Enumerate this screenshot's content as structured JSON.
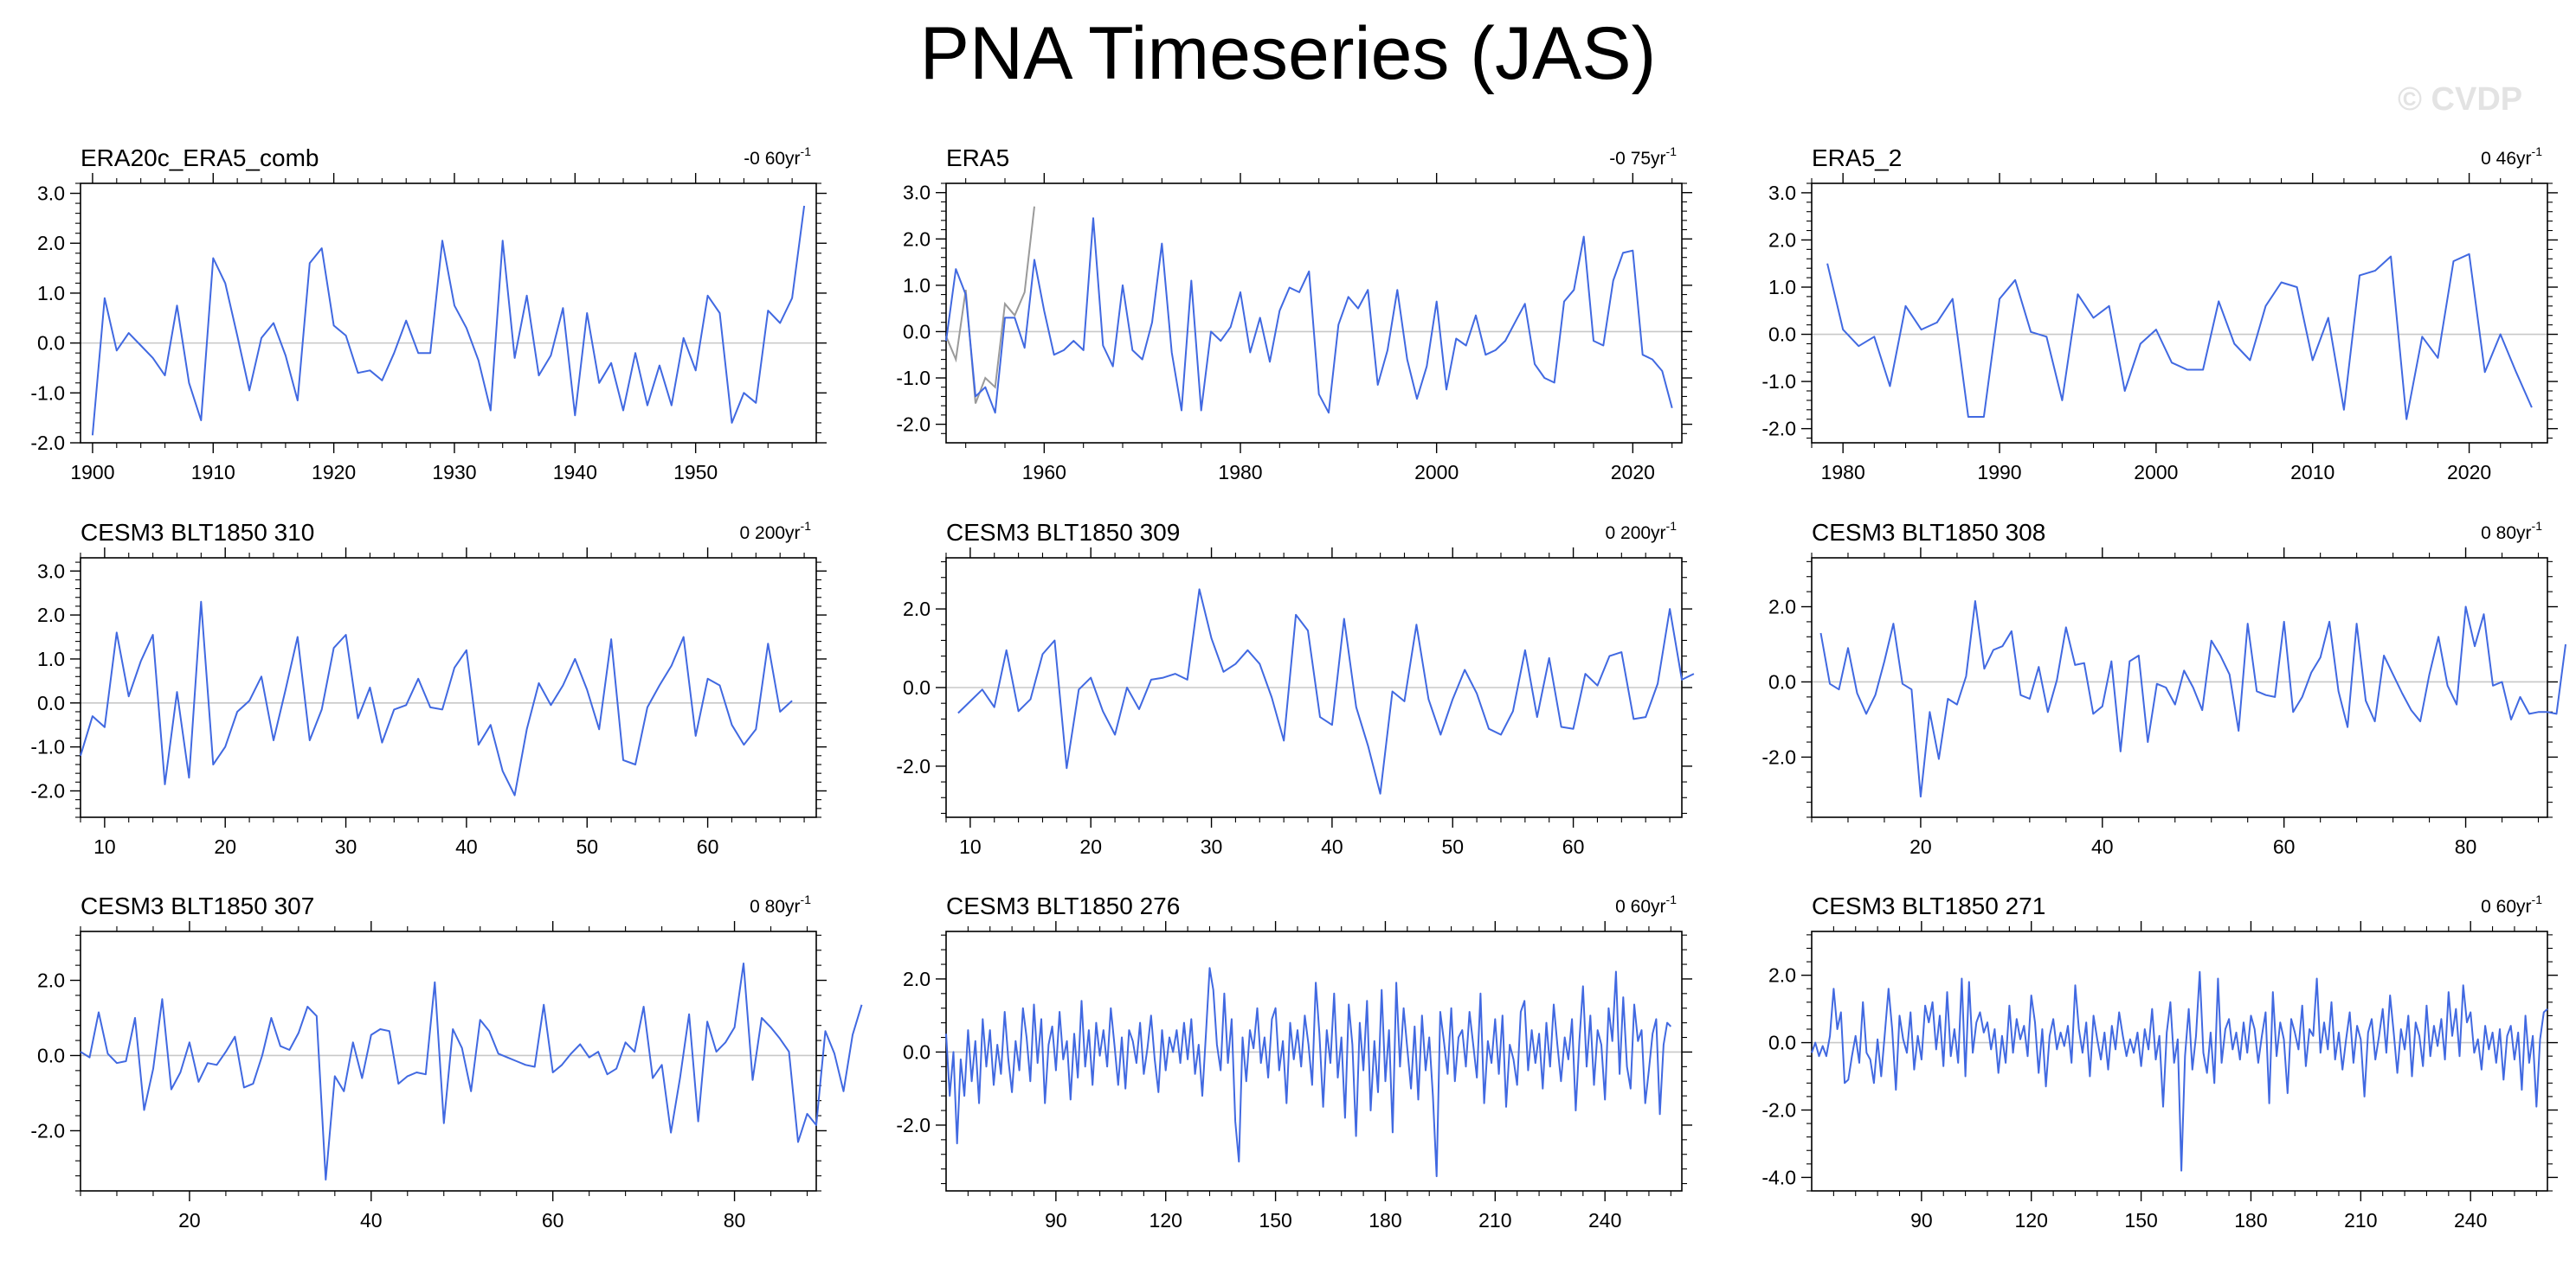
{
  "title": "PNA Timeseries (JAS)",
  "watermark": "© CVDP",
  "colors": {
    "series": "#4169e1",
    "overlay": "#9a9a9a",
    "zero": "#c8c8c8",
    "axis": "#000000"
  },
  "chart_data": [
    {
      "type": "line",
      "title": "ERA20c_ERA5_comb",
      "trend": "-0 60yr",
      "trend_exp": "-1",
      "xlim": [
        1899,
        1960
      ],
      "ylim": [
        -2.0,
        3.2
      ],
      "xticks": [
        1900,
        1910,
        1920,
        1930,
        1940,
        1950
      ],
      "xtick_labels": [
        "1900",
        "1910",
        "1920",
        "1930",
        "1940",
        "1950"
      ],
      "yticks": [
        -2,
        -1,
        0,
        1,
        2,
        3
      ],
      "ytick_labels": [
        "-2.0",
        "-1.0",
        "0.0",
        "1.0",
        "2.0",
        "3.0"
      ],
      "x_start": 1900,
      "x_step": 1,
      "values": [
        -1.85,
        0.9,
        -0.15,
        0.2,
        -0.05,
        -0.3,
        -0.65,
        0.75,
        -0.8,
        -1.55,
        1.7,
        1.2,
        0.15,
        -0.95,
        0.1,
        0.4,
        -0.25,
        -1.15,
        1.6,
        1.9,
        0.35,
        0.15,
        -0.6,
        -0.55,
        -0.75,
        -0.2,
        0.45,
        -0.2,
        -0.2,
        2.05,
        0.75,
        0.3,
        -0.35,
        -1.35,
        2.05,
        -0.3,
        0.95,
        -0.65,
        -0.25,
        0.7,
        -1.45,
        0.6,
        -0.8,
        -0.4,
        -1.35,
        -0.2,
        -1.25,
        -0.45,
        -1.25,
        0.1,
        -0.55,
        0.95,
        0.6,
        -1.6,
        -1.0,
        -1.2,
        0.65,
        0.4,
        0.9,
        2.75
      ]
    },
    {
      "type": "line",
      "title": "ERA5",
      "trend": "-0 75yr",
      "trend_exp": "-1",
      "xlim": [
        1950,
        2025
      ],
      "ylim": [
        -2.4,
        3.2
      ],
      "xticks": [
        1960,
        1980,
        2000,
        2020
      ],
      "xtick_labels": [
        "1960",
        "1980",
        "2000",
        "2020"
      ],
      "yticks": [
        -2,
        -1,
        0,
        1,
        2,
        3
      ],
      "ytick_labels": [
        "-2.0",
        "-1.0",
        "0.0",
        "1.0",
        "2.0",
        "3.0"
      ],
      "x_start": 1950,
      "x_step": 1,
      "values": [
        -0.2,
        1.35,
        0.8,
        -1.4,
        -1.2,
        -1.75,
        0.3,
        0.3,
        -0.35,
        1.55,
        0.45,
        -0.5,
        -0.4,
        -0.2,
        -0.4,
        2.45,
        -0.3,
        -0.75,
        1.0,
        -0.4,
        -0.6,
        0.2,
        1.9,
        -0.45,
        -1.7,
        1.1,
        -1.7,
        0.0,
        -0.2,
        0.1,
        0.85,
        -0.45,
        0.3,
        -0.65,
        0.45,
        0.95,
        0.85,
        1.3,
        -1.35,
        -1.75,
        0.15,
        0.75,
        0.5,
        0.9,
        -1.15,
        -0.4,
        0.9,
        -0.6,
        -1.45,
        -0.75,
        0.65,
        -1.25,
        -0.15,
        -0.3,
        0.35,
        -0.5,
        -0.4,
        -0.2,
        0.2,
        0.6,
        -0.7,
        -1.0,
        -1.1,
        0.65,
        0.9,
        2.05,
        -0.2,
        -0.3,
        1.1,
        1.7,
        1.75,
        -0.5,
        -0.6,
        -0.85,
        -1.65
      ],
      "overlay": {
        "x_start": 1950,
        "x_step": 1,
        "values": [
          -0.1,
          -0.6,
          0.9,
          -1.55,
          -1.0,
          -1.2,
          0.6,
          0.35,
          0.85,
          2.7
        ]
      }
    },
    {
      "type": "line",
      "title": "ERA5_2",
      "trend": "0 46yr",
      "trend_exp": "-1",
      "xlim": [
        1978,
        2025
      ],
      "ylim": [
        -2.3,
        3.2
      ],
      "xticks": [
        1980,
        1990,
        2000,
        2010,
        2020
      ],
      "xtick_labels": [
        "1980",
        "1990",
        "2000",
        "2010",
        "2020"
      ],
      "yticks": [
        -2,
        -1,
        0,
        1,
        2,
        3
      ],
      "ytick_labels": [
        "-2.0",
        "-1.0",
        "0.0",
        "1.0",
        "2.0",
        "3.0"
      ],
      "x_start": 1979,
      "x_step": 1,
      "values": [
        1.5,
        0.1,
        -0.25,
        -0.05,
        -1.1,
        0.6,
        0.1,
        0.25,
        0.75,
        -1.75,
        -1.75,
        0.75,
        1.15,
        0.05,
        -0.05,
        -1.4,
        0.85,
        0.35,
        0.6,
        -1.2,
        -0.2,
        0.1,
        -0.6,
        -0.75,
        -0.75,
        0.7,
        -0.2,
        -0.55,
        0.6,
        1.1,
        1.0,
        -0.55,
        0.35,
        -1.6,
        1.25,
        1.35,
        1.65,
        -1.8,
        -0.05,
        -0.5,
        1.55,
        1.7,
        -0.8,
        0.0,
        -0.8,
        -1.55
      ]
    },
    {
      "type": "line",
      "title": "CESM3 BLT1850 310",
      "trend": "0 200yr",
      "trend_exp": "-1",
      "xlim": [
        8,
        69
      ],
      "ylim": [
        -2.6,
        3.3
      ],
      "xticks": [
        10,
        20,
        30,
        40,
        50,
        60
      ],
      "xtick_labels": [
        "10",
        "20",
        "30",
        "40",
        "50",
        "60"
      ],
      "yticks": [
        -2,
        -1,
        0,
        1,
        2,
        3
      ],
      "ytick_labels": [
        "-2.0",
        "-1.0",
        "0.0",
        "1.0",
        "2.0",
        "3.0"
      ],
      "x_start": 8,
      "x_step": 1,
      "values": [
        -1.2,
        -0.3,
        -0.55,
        1.6,
        0.15,
        0.95,
        1.55,
        -1.85,
        0.25,
        -1.7,
        2.3,
        -1.4,
        -1.0,
        -0.2,
        0.05,
        0.6,
        -0.85,
        0.3,
        1.5,
        -0.85,
        -0.15,
        1.25,
        1.55,
        -0.35,
        0.35,
        -0.9,
        -0.15,
        -0.05,
        0.55,
        -0.1,
        -0.15,
        0.8,
        1.2,
        -0.95,
        -0.5,
        -1.55,
        -2.1,
        -0.6,
        0.45,
        -0.05,
        0.4,
        1.0,
        0.3,
        -0.6,
        1.45,
        -1.3,
        -1.4,
        -0.1,
        0.4,
        0.85,
        1.5,
        -0.75,
        0.55,
        0.4,
        -0.5,
        -0.95,
        -0.6,
        1.35,
        -0.2,
        0.05
      ]
    },
    {
      "type": "line",
      "title": "CESM3 BLT1850 309",
      "trend": "0 200yr",
      "trend_exp": "-1",
      "xlim": [
        8,
        69
      ],
      "ylim": [
        -3.3,
        3.3
      ],
      "xticks": [
        10,
        20,
        30,
        40,
        50,
        60
      ],
      "xtick_labels": [
        "10",
        "20",
        "30",
        "40",
        "50",
        "60"
      ],
      "yticks": [
        -2,
        0,
        2
      ],
      "ytick_labels": [
        "-2.0",
        "0.0",
        "2.0"
      ],
      "x_start": 9,
      "x_step": 1,
      "values": [
        -0.65,
        -0.35,
        -0.05,
        -0.5,
        0.95,
        -0.6,
        -0.3,
        0.85,
        1.2,
        -2.05,
        -0.05,
        0.25,
        -0.6,
        -1.2,
        0.0,
        -0.55,
        0.2,
        0.25,
        0.35,
        0.2,
        2.5,
        1.25,
        0.4,
        0.6,
        0.95,
        0.6,
        -0.25,
        -1.35,
        1.85,
        1.45,
        -0.75,
        -0.95,
        1.75,
        -0.5,
        -1.5,
        -2.7,
        -0.1,
        -0.35,
        1.6,
        -0.3,
        -1.2,
        -0.3,
        0.45,
        -0.15,
        -1.05,
        -1.2,
        -0.6,
        0.95,
        -0.75,
        0.75,
        -1.0,
        -1.05,
        0.35,
        0.05,
        0.8,
        0.9,
        -0.8,
        -0.75,
        0.1,
        2.0,
        0.2,
        0.35
      ]
    },
    {
      "type": "line",
      "title": "CESM3 BLT1850 308",
      "trend": "0 80yr",
      "trend_exp": "-1",
      "xlim": [
        8,
        89
      ],
      "ylim": [
        -3.6,
        3.3
      ],
      "xticks": [
        20,
        40,
        60,
        80
      ],
      "xtick_labels": [
        "20",
        "40",
        "60",
        "80"
      ],
      "yticks": [
        -2,
        0,
        2
      ],
      "ytick_labels": [
        "-2.0",
        "0.0",
        "2.0"
      ],
      "x_start": 9,
      "x_step": 1,
      "values": [
        1.3,
        -0.05,
        -0.2,
        0.9,
        -0.3,
        -0.85,
        -0.35,
        0.55,
        1.55,
        -0.05,
        -0.2,
        -3.05,
        -0.8,
        -2.05,
        -0.45,
        -0.6,
        0.15,
        2.15,
        0.35,
        0.85,
        0.95,
        1.35,
        -0.35,
        -0.45,
        0.4,
        -0.8,
        0.05,
        1.45,
        0.45,
        0.5,
        -0.85,
        -0.65,
        0.55,
        -1.85,
        0.55,
        0.7,
        -1.6,
        -0.05,
        -0.15,
        -0.6,
        0.3,
        -0.15,
        -0.75,
        1.1,
        0.7,
        0.2,
        -1.3,
        1.55,
        -0.25,
        -0.35,
        -0.4,
        1.6,
        -0.8,
        -0.4,
        0.25,
        0.65,
        1.6,
        -0.25,
        -1.2,
        1.55,
        -0.5,
        -1.05,
        0.7,
        0.2,
        -0.3,
        -0.75,
        -1.05,
        0.2,
        1.2,
        -0.1,
        -0.6,
        2.0,
        0.95,
        1.8,
        -0.1,
        0.0,
        -1.0,
        -0.4,
        -0.85,
        -0.8,
        -0.8,
        -0.85,
        1.0
      ]
    },
    {
      "type": "line",
      "title": "CESM3 BLT1850 307",
      "trend": "0 80yr",
      "trend_exp": "-1",
      "xlim": [
        8,
        89
      ],
      "ylim": [
        -3.6,
        3.3
      ],
      "xticks": [
        20,
        40,
        60,
        80
      ],
      "xtick_labels": [
        "20",
        "40",
        "60",
        "80"
      ],
      "yticks": [
        -2,
        0,
        2
      ],
      "ytick_labels": [
        "-2.0",
        "0.0",
        "2.0"
      ],
      "x_start": 8,
      "x_step": 1,
      "values": [
        0.1,
        -0.05,
        1.15,
        0.05,
        -0.2,
        -0.15,
        1.0,
        -1.45,
        -0.35,
        1.5,
        -0.9,
        -0.45,
        0.35,
        -0.7,
        -0.2,
        -0.25,
        0.1,
        0.5,
        -0.85,
        -0.75,
        0.0,
        1.0,
        0.25,
        0.15,
        0.6,
        1.3,
        1.05,
        -3.3,
        -0.55,
        -0.95,
        0.35,
        -0.6,
        0.55,
        0.7,
        0.65,
        -0.75,
        -0.55,
        -0.45,
        -0.5,
        1.95,
        -1.8,
        0.7,
        0.2,
        -0.95,
        0.95,
        0.65,
        0.05,
        -0.05,
        -0.15,
        -0.25,
        -0.3,
        1.35,
        -0.45,
        -0.25,
        0.05,
        0.3,
        -0.05,
        0.1,
        -0.5,
        -0.35,
        0.35,
        0.1,
        1.3,
        -0.6,
        -0.25,
        -2.05,
        -0.6,
        1.1,
        -1.75,
        0.9,
        0.1,
        0.35,
        0.75,
        2.45,
        -0.65,
        1.0,
        0.75,
        0.45,
        0.1,
        -2.3,
        -1.55,
        -1.85,
        0.65,
        0.05,
        -0.95,
        0.55,
        1.35
      ]
    },
    {
      "type": "line",
      "title": "CESM3 BLT1850 276",
      "trend": "0 60yr",
      "trend_exp": "-1",
      "xlim": [
        60,
        261
      ],
      "ylim": [
        -3.8,
        3.3
      ],
      "xticks": [
        90,
        120,
        150,
        180,
        210,
        240
      ],
      "xtick_labels": [
        "90",
        "120",
        "150",
        "180",
        "210",
        "240"
      ],
      "yticks": [
        -2,
        0,
        2
      ],
      "ytick_labels": [
        "-2.0",
        "0.0",
        "2.0"
      ],
      "x_start": 60,
      "x_step": 1,
      "values": [
        0.5,
        -1.2,
        0.0,
        -2.5,
        -0.2,
        -1.2,
        0.6,
        -0.8,
        0.3,
        -1.4,
        0.9,
        -0.4,
        0.6,
        -0.9,
        0.2,
        -0.6,
        1.1,
        -0.2,
        -1.1,
        0.3,
        -0.5,
        1.2,
        0.4,
        -0.8,
        1.3,
        -0.3,
        0.9,
        -1.4,
        0.2,
        0.7,
        -0.5,
        1.1,
        -0.2,
        0.3,
        -1.3,
        0.5,
        -0.7,
        1.4,
        -0.4,
        0.6,
        -0.9,
        0.8,
        -0.1,
        0.6,
        -0.4,
        1.2,
        0.2,
        -0.9,
        0.4,
        -1.0,
        0.6,
        0.3,
        -0.3,
        0.8,
        -0.6,
        0.1,
        1.0,
        -0.2,
        -1.1,
        0.6,
        -0.5,
        0.4,
        0.0,
        0.6,
        -0.3,
        0.8,
        -0.2,
        0.9,
        -0.6,
        0.2,
        -1.2,
        0.5,
        2.3,
        1.7,
        0.2,
        -0.5,
        1.6,
        -0.3,
        0.9,
        -1.9,
        -3.0,
        0.4,
        -0.8,
        0.6,
        0.1,
        1.2,
        -0.3,
        0.4,
        -0.7,
        0.9,
        1.2,
        -0.5,
        0.3,
        -1.4,
        0.8,
        -0.2,
        0.6,
        -0.4,
        1.0,
        0.2,
        -0.9,
        1.9,
        0.5,
        -1.5,
        0.6,
        -0.3,
        1.6,
        -0.7,
        0.4,
        -1.8,
        1.3,
        0.2,
        -2.3,
        0.8,
        -0.5,
        1.4,
        -1.6,
        0.3,
        -1.1,
        1.7,
        -0.8,
        0.6,
        -2.2,
        1.9,
        -0.4,
        1.2,
        0.1,
        -1.0,
        0.7,
        -1.3,
        1.0,
        -0.5,
        0.4,
        -1.2,
        -3.4,
        1.1,
        0.3,
        -0.6,
        1.2,
        -0.8,
        0.4,
        0.6,
        -0.4,
        1.1,
        0.2,
        -0.7,
        1.6,
        -1.4,
        0.3,
        -0.3,
        0.9,
        -0.6,
        1.0,
        -1.5,
        0.2,
        -0.2,
        -0.9,
        1.1,
        1.4,
        -0.5,
        0.6,
        -0.3,
        0.5,
        -1.0,
        0.8,
        -0.4,
        1.3,
        0.2,
        -0.8,
        0.4,
        -0.2,
        0.9,
        -1.6,
        0.3,
        1.8,
        -0.4,
        1.0,
        -0.9,
        0.6,
        0.2,
        -1.3,
        1.2,
        0.3,
        2.2,
        -0.6,
        1.5,
        -0.4,
        -1.0,
        1.3,
        0.3,
        0.6,
        -1.4,
        -0.5,
        0.5,
        0.9,
        -1.7,
        0.2,
        0.8,
        0.7
      ]
    },
    {
      "type": "line",
      "title": "CESM3 BLT1850 271",
      "trend": "0 60yr",
      "trend_exp": "-1",
      "xlim": [
        60,
        261
      ],
      "ylim": [
        -4.4,
        3.3
      ],
      "xticks": [
        90,
        120,
        150,
        180,
        210,
        240
      ],
      "xtick_labels": [
        "90",
        "120",
        "150",
        "180",
        "210",
        "240"
      ],
      "yticks": [
        -4,
        -2,
        0,
        2
      ],
      "ytick_labels": [
        "-4.0",
        "-2.0",
        "0.0",
        "2.0"
      ],
      "x_start": 60,
      "x_step": 1,
      "values": [
        -0.3,
        0.0,
        -0.4,
        -0.1,
        -0.4,
        0.2,
        1.6,
        0.4,
        0.9,
        -1.2,
        -1.1,
        -0.4,
        0.2,
        -0.6,
        1.2,
        -0.3,
        -0.5,
        -1.2,
        0.1,
        -1.0,
        0.3,
        1.6,
        0.4,
        -1.4,
        0.8,
        0.1,
        -0.3,
        0.9,
        -0.8,
        0.2,
        -0.5,
        1.1,
        0.6,
        1.2,
        -0.2,
        0.8,
        -0.7,
        1.5,
        -0.4,
        0.4,
        -0.6,
        1.9,
        -1.0,
        1.8,
        -0.3,
        0.6,
        0.9,
        0.3,
        0.6,
        -0.2,
        0.4,
        -0.9,
        0.2,
        -0.6,
        1.1,
        -0.3,
        0.7,
        0.1,
        0.5,
        -0.4,
        1.4,
        0.6,
        -0.9,
        0.4,
        -1.3,
        0.2,
        0.7,
        -0.2,
        0.3,
        -0.1,
        0.5,
        -0.6,
        1.7,
        0.4,
        -0.3,
        0.6,
        -1.0,
        0.8,
        0.1,
        -0.5,
        0.3,
        -0.8,
        0.5,
        -0.2,
        0.9,
        0.2,
        -0.4,
        0.1,
        -0.3,
        0.3,
        -0.7,
        0.4,
        -0.2,
        1.0,
        -0.5,
        0.2,
        -1.9,
        0.3,
        1.2,
        -0.6,
        0.1,
        -3.8,
        -0.4,
        1.0,
        -0.8,
        0.2,
        2.1,
        -0.3,
        -0.9,
        0.3,
        -1.2,
        1.9,
        -0.6,
        0.4,
        0.7,
        -0.2,
        0.3,
        -0.5,
        0.6,
        -0.3,
        0.8,
        0.4,
        -0.6,
        0.2,
        0.9,
        -1.8,
        1.5,
        -0.4,
        0.6,
        0.1,
        -1.5,
        0.7,
        0.3,
        -0.2,
        1.1,
        -0.7,
        0.4,
        0.2,
        1.9,
        -0.3,
        0.6,
        -0.2,
        1.2,
        -0.5,
        0.3,
        -0.8,
        0.1,
        0.9,
        -0.6,
        0.5,
        0.1,
        -1.6,
        0.3,
        0.7,
        -0.5,
        0.2,
        1.0,
        -0.3,
        1.4,
        0.3,
        -0.9,
        0.4,
        -0.2,
        0.8,
        -1.0,
        0.6,
        0.2,
        -0.7,
        1.1,
        -0.4,
        0.5,
        -0.1,
        0.7,
        -0.5,
        1.5,
        0.2,
        1.0,
        -0.4,
        1.7,
        0.6,
        0.9,
        -0.3,
        0.1,
        -0.8,
        0.5,
        -0.2,
        0.3,
        -0.6,
        0.4,
        -1.1,
        0.2,
        0.5,
        -0.5,
        0.3,
        -1.4,
        0.8,
        -0.6,
        0.2,
        -1.9,
        0.1,
        0.9,
        1.0
      ]
    }
  ]
}
